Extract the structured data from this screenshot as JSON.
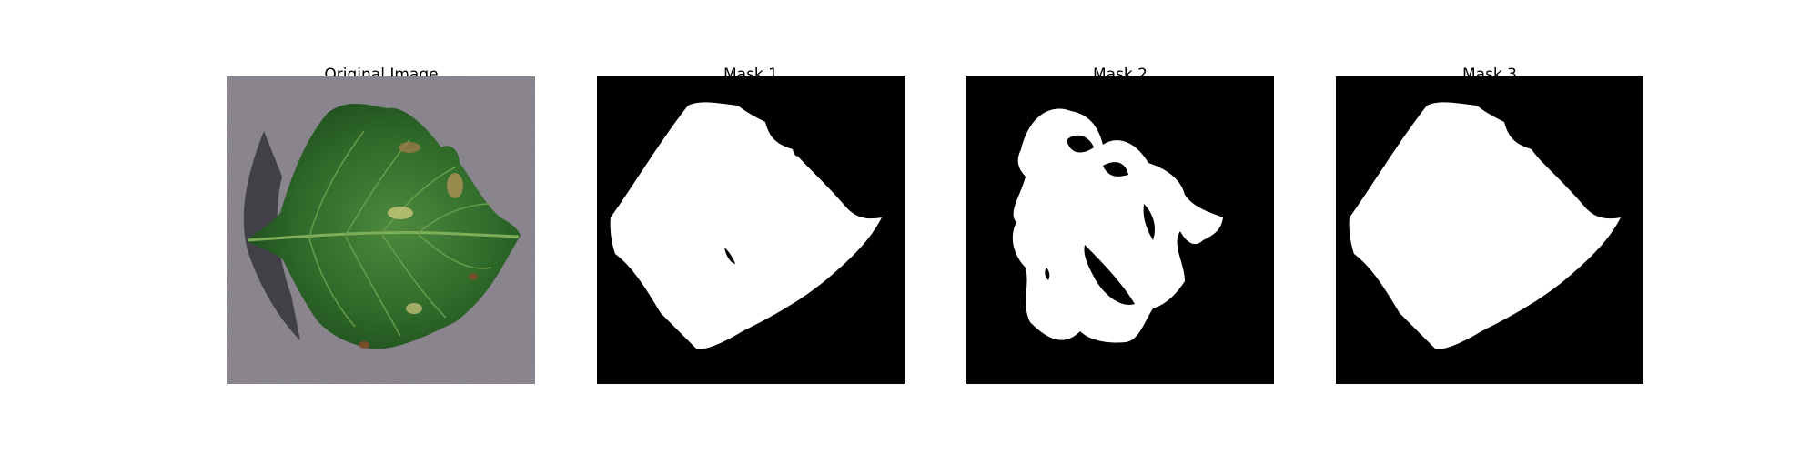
{
  "panels": [
    {
      "title": "Original Image",
      "kind": "photo"
    },
    {
      "title": "Mask 1",
      "kind": "mask"
    },
    {
      "title": "Mask 2",
      "kind": "mask"
    },
    {
      "title": "Mask 3",
      "kind": "mask"
    }
  ]
}
